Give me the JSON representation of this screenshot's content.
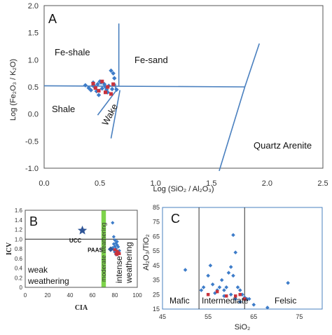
{
  "colors": {
    "blue": "#3d7cc9",
    "red": "#c8323c",
    "green": "#7dd44a",
    "line": "#4a80bf"
  },
  "chart_data": [
    {
      "panel": "A",
      "type": "scatter",
      "xlabel": "Log (SiO₂ / Al₂O₃)",
      "ylabel": "Log (Fe₂O₃ / K₂O)",
      "xlim": [
        0,
        2.5
      ],
      "ylim": [
        -1.0,
        2.0
      ],
      "xticks": [
        "0.0",
        "0.5",
        "1.0",
        "1.5",
        "2.0",
        "2.5"
      ],
      "yticks": [
        "2.0",
        "1.5",
        "1.0",
        "0.5",
        "0.0",
        "-0.5",
        "-1.0"
      ],
      "regions": [
        "Fe-shale",
        "Fe-sand",
        "Shale",
        "Wake",
        "Quartz Arenite"
      ],
      "series": [
        {
          "color": "blue",
          "marker": "diamond",
          "x": [
            0.37,
            0.4,
            0.42,
            0.44,
            0.45,
            0.46,
            0.47,
            0.48,
            0.49,
            0.5,
            0.52,
            0.54,
            0.56,
            0.57,
            0.58,
            0.6,
            0.62,
            0.55,
            0.61,
            0.65,
            0.63,
            0.51,
            0.44
          ],
          "y": [
            0.53,
            0.48,
            0.44,
            0.58,
            0.52,
            0.49,
            0.42,
            0.55,
            0.35,
            0.6,
            0.47,
            0.55,
            0.45,
            0.4,
            0.52,
            0.8,
            0.75,
            0.5,
            0.46,
            0.45,
            0.66,
            0.58,
            0.52
          ]
        },
        {
          "color": "red",
          "marker": "square",
          "x": [
            0.44,
            0.46,
            0.49,
            0.52,
            0.55,
            0.57,
            0.6,
            0.62
          ],
          "y": [
            0.56,
            0.48,
            0.43,
            0.6,
            0.4,
            0.5,
            0.37,
            0.55
          ]
        }
      ]
    },
    {
      "panel": "B",
      "type": "scatter",
      "xlabel": "CIA",
      "ylabel": "ICV",
      "xlim": [
        0,
        100
      ],
      "ylim": [
        0,
        1.6
      ],
      "xticks": [
        "0",
        "20",
        "40",
        "60",
        "80",
        "100"
      ],
      "yticks": [
        "1.6",
        "1.4",
        "1.2",
        "1.0",
        "0.8",
        "0.6",
        "0.4",
        "0.2",
        "0"
      ],
      "reference": [
        {
          "name": "UCC",
          "x": 51,
          "y": 1.18
        },
        {
          "name": "PAAS",
          "x": 70,
          "y": 0.85
        }
      ],
      "threshold_line_y": 1.0,
      "green_band": [
        68,
        72
      ],
      "labels": [
        "weak weathering",
        "moderate weathering",
        "intense weathering"
      ],
      "series": [
        {
          "color": "blue",
          "marker": "diamond",
          "x": [
            78,
            79,
            80,
            81,
            82,
            83,
            80,
            81,
            79,
            84,
            82,
            78,
            80,
            83,
            81,
            79,
            82,
            80
          ],
          "y": [
            1.34,
            1.05,
            0.98,
            0.92,
            0.88,
            0.84,
            0.85,
            0.8,
            0.78,
            0.76,
            0.72,
            0.82,
            0.74,
            0.7,
            0.68,
            0.9,
            0.95,
            0.73
          ]
        },
        {
          "color": "red",
          "marker": "square",
          "x": [
            80,
            82,
            83,
            81,
            84,
            82
          ],
          "y": [
            0.78,
            0.75,
            0.72,
            0.7,
            0.7,
            0.68
          ]
        }
      ]
    },
    {
      "panel": "C",
      "type": "scatter",
      "xlabel": "SiO₂",
      "ylabel": "Al₂O₃/TiO₂",
      "xlim": [
        45,
        80
      ],
      "ylim": [
        15,
        85
      ],
      "xticks": [
        "45",
        "55",
        "65",
        "75"
      ],
      "yticks": [
        "85",
        "75",
        "65",
        "55",
        "45",
        "35",
        "25",
        "15"
      ],
      "dividers_x": [
        53,
        63
      ],
      "regions": [
        "Mafic",
        "Intermediate",
        "Felsic"
      ],
      "series": [
        {
          "color": "blue",
          "marker": "diamond",
          "x": [
            50.0,
            54.0,
            55.5,
            55.0,
            56.0,
            57.0,
            57.5,
            58.0,
            58.5,
            59.0,
            59.5,
            60.0,
            60.5,
            61.0,
            61.5,
            62.0,
            62.5,
            63.0,
            63.5,
            64.0,
            56.5,
            58.5,
            60.0,
            61.0,
            62.0,
            60.5,
            65.0,
            68.0,
            72.5,
            53.5
          ],
          "y": [
            42,
            30,
            45,
            38,
            32,
            28,
            30,
            35,
            28,
            30,
            40,
            44,
            66,
            54,
            30,
            28,
            25,
            23,
            22,
            22,
            26,
            24,
            25,
            22,
            20,
            38,
            18,
            16,
            33,
            28
          ]
        },
        {
          "color": "red",
          "marker": "square",
          "x": [
            55.0,
            57.0,
            59.0,
            61.0,
            62.0,
            63.0
          ],
          "y": [
            25,
            27,
            24,
            24,
            25,
            22
          ]
        }
      ]
    }
  ]
}
